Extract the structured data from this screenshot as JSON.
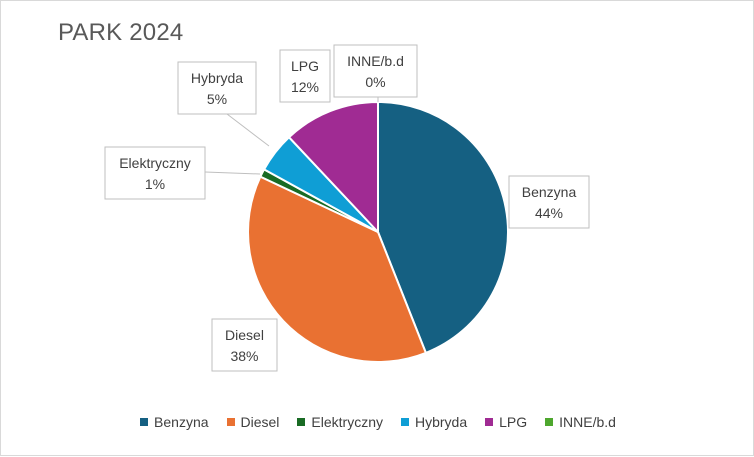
{
  "chart_data": {
    "type": "pie",
    "title": "PARK 2024",
    "legend_position": "bottom",
    "slices": [
      {
        "name": "Benzyna",
        "label": "44%",
        "value": 44,
        "color": "#156082"
      },
      {
        "name": "Diesel",
        "label": "38%",
        "value": 38,
        "color": "#E97132"
      },
      {
        "name": "Elektryczny",
        "label": "1%",
        "value": 1,
        "color": "#196B24"
      },
      {
        "name": "Hybryda",
        "label": "5%",
        "value": 5,
        "color": "#0F9ED5"
      },
      {
        "name": "LPG",
        "label": "12%",
        "value": 12,
        "color": "#A02B93"
      },
      {
        "name": "INNE/b.d",
        "label": "0%",
        "value": 0,
        "color": "#4EA72E"
      }
    ]
  }
}
